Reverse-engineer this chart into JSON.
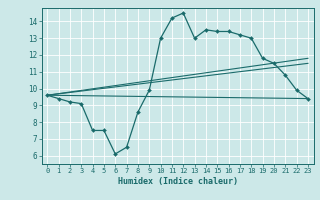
{
  "xlabel": "Humidex (Indice chaleur)",
  "bg_color": "#cce8e8",
  "line_color": "#1a6b6b",
  "xlim": [
    -0.5,
    23.5
  ],
  "ylim": [
    5.5,
    14.8
  ],
  "yticks": [
    6,
    7,
    8,
    9,
    10,
    11,
    12,
    13,
    14
  ],
  "xticks": [
    0,
    1,
    2,
    3,
    4,
    5,
    6,
    7,
    8,
    9,
    10,
    11,
    12,
    13,
    14,
    15,
    16,
    17,
    18,
    19,
    20,
    21,
    22,
    23
  ],
  "line1_x": [
    0,
    1,
    2,
    3,
    4,
    5,
    6,
    7,
    8,
    9,
    10,
    11,
    12,
    13,
    14,
    15,
    16,
    17,
    18,
    19,
    20,
    21,
    22,
    23
  ],
  "line1_y": [
    9.6,
    9.4,
    9.2,
    9.1,
    7.5,
    7.5,
    6.1,
    6.5,
    8.6,
    9.9,
    13.0,
    14.2,
    14.5,
    13.0,
    13.5,
    13.4,
    13.4,
    13.2,
    13.0,
    11.8,
    11.5,
    10.8,
    9.9,
    9.4
  ],
  "line2_x": [
    0,
    23
  ],
  "line2_y": [
    9.6,
    9.4
  ],
  "line3_x": [
    0,
    23
  ],
  "line3_y": [
    9.6,
    11.5
  ],
  "line4_x": [
    0,
    23
  ],
  "line4_y": [
    9.6,
    11.8
  ],
  "grid_color": "#b0d8d8"
}
